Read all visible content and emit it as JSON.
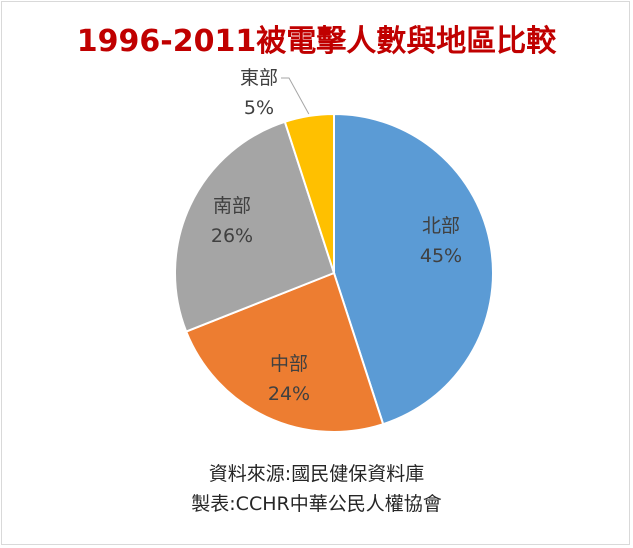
{
  "chart_data": {
    "type": "pie",
    "title": "1996-2011被電擊人數與地區比較",
    "categories": [
      "北部",
      "中部",
      "南部",
      "東部"
    ],
    "values": [
      45,
      24,
      26,
      5
    ],
    "value_labels": [
      "45%",
      "24%",
      "26%",
      "5%"
    ],
    "colors": [
      "#5b9bd5",
      "#ed7d31",
      "#a5a5a5",
      "#ffc000"
    ],
    "start": "12 o'clock",
    "direction": "clockwise",
    "legend": "none"
  },
  "footer": {
    "source": "資料來源:國民健保資料庫",
    "maker": "製表:CCHR中華公民人權協會"
  },
  "colors": {
    "title": "#c00000",
    "text": "#404040"
  }
}
